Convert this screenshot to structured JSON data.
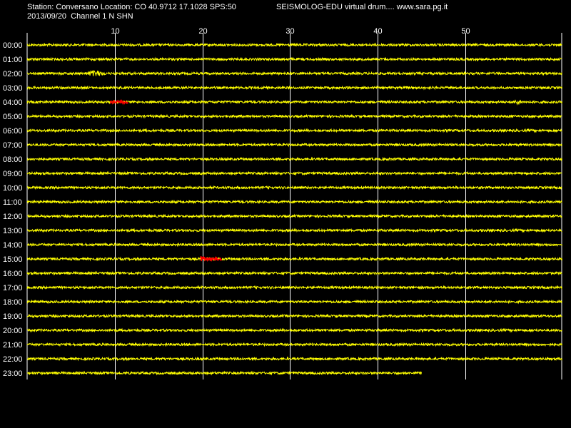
{
  "header": {
    "station_line": "Station: Conversano Location: CO 40.9712 17.1028 SPS:50",
    "date_line": "2013/09/20  Channel 1 N SHN",
    "title": "SEISMOLOG-EDU virtual drum.... www.sara.pg.it"
  },
  "colors": {
    "background": "#000000",
    "trace": "#ffff00",
    "event": "#ff0000",
    "grid": "#ffffff",
    "text": "#ffffff"
  },
  "chart_data": {
    "type": "line",
    "x_unit": "minutes",
    "xlim": [
      0,
      61
    ],
    "x_ticks": [
      10,
      20,
      30,
      40,
      50
    ],
    "grid": true,
    "rows": [
      "00:00",
      "01:00",
      "02:00",
      "03:00",
      "04:00",
      "05:00",
      "06:00",
      "07:00",
      "08:00",
      "09:00",
      "10:00",
      "11:00",
      "12:00",
      "13:00",
      "14:00",
      "15:00",
      "16:00",
      "17:00",
      "18:00",
      "19:00",
      "20:00",
      "21:00",
      "22:00",
      "23:00"
    ],
    "last_row_end_minute": 45,
    "yellow_bursts": [
      {
        "row": "02:00",
        "start": 6.5,
        "end": 9.0
      },
      {
        "row": "04:00",
        "start": 55.5,
        "end": 56.5
      }
    ],
    "events": [
      {
        "row": "04:00",
        "start": 9.5,
        "end": 11.5,
        "color": "red"
      },
      {
        "row": "15:00",
        "start": 19.8,
        "end": 22.2,
        "color": "red"
      }
    ]
  }
}
